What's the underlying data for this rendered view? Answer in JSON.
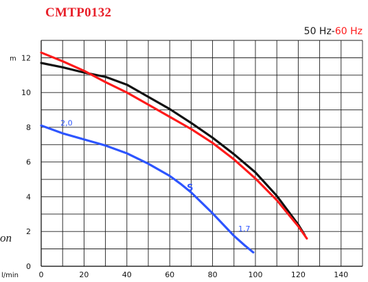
{
  "header": {
    "model": "CMTP0132",
    "freq_50": "50 Hz-",
    "freq_60": "60 Hz"
  },
  "side_text": "on",
  "chart_data": {
    "type": "line",
    "xlabel": "l/min",
    "ylabel": "m",
    "xlim": [
      0,
      150
    ],
    "ylim": [
      0,
      13
    ],
    "x_ticks": [
      0,
      20,
      40,
      60,
      80,
      100,
      120,
      140
    ],
    "y_ticks": [
      0,
      2,
      4,
      6,
      8,
      10,
      12
    ],
    "grid": true,
    "series": [
      {
        "color": "#111111",
        "x": [
          0,
          10,
          20,
          30,
          40,
          50,
          60,
          70,
          80,
          90,
          100,
          110,
          120,
          123
        ],
        "y": [
          11.7,
          11.45,
          11.15,
          10.9,
          10.45,
          9.75,
          9.05,
          8.25,
          7.4,
          6.45,
          5.4,
          4.05,
          2.4,
          1.8
        ]
      },
      {
        "color": "#ff1a1a",
        "x": [
          0,
          10,
          20,
          30,
          40,
          50,
          60,
          70,
          80,
          90,
          100,
          110,
          120,
          124
        ],
        "y": [
          12.3,
          11.8,
          11.25,
          10.6,
          10.0,
          9.3,
          8.6,
          7.9,
          7.1,
          6.15,
          5.05,
          3.8,
          2.3,
          1.6
        ]
      },
      {
        "color": "#2d55ff",
        "x": [
          0,
          10,
          20,
          30,
          40,
          50,
          60,
          65,
          70,
          75,
          80,
          85,
          90,
          95,
          99
        ],
        "y": [
          8.1,
          7.65,
          7.3,
          6.95,
          6.5,
          5.9,
          5.2,
          4.75,
          4.25,
          3.65,
          3.05,
          2.4,
          1.75,
          1.2,
          0.8
        ]
      }
    ],
    "annotations": [
      {
        "text": "2,0",
        "x": 9,
        "y": 8.1
      },
      {
        "text": "S",
        "x": 68,
        "y": 4.35
      },
      {
        "text": "1,7",
        "x": 92,
        "y": 2.0
      }
    ]
  }
}
